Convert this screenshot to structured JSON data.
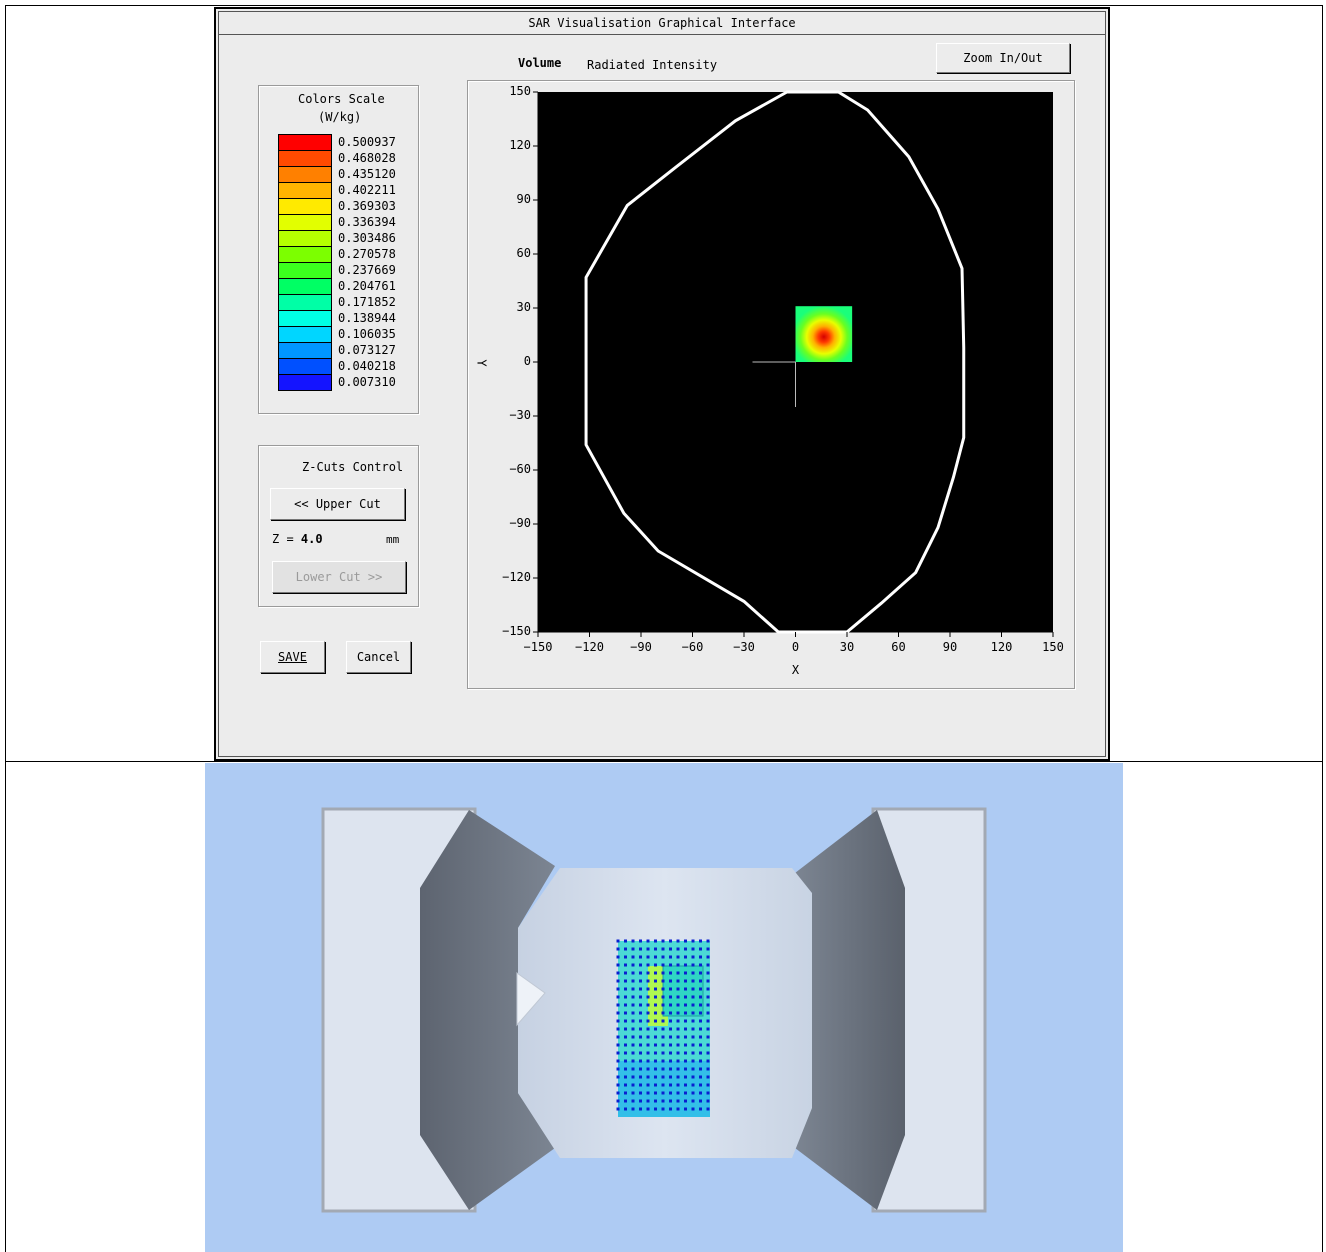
{
  "window": {
    "title": "SAR Visualisation Graphical Interface",
    "mode_label": "Volume",
    "mode_value": "Radiated Intensity",
    "zoom_button": "Zoom In/Out"
  },
  "color_scale": {
    "title_line1": "Colors Scale",
    "title_line2": "(W/kg)",
    "entries": [
      {
        "value": "0.500937",
        "color": "#ff0000"
      },
      {
        "value": "0.468028",
        "color": "#ff4a00"
      },
      {
        "value": "0.435120",
        "color": "#ff8000"
      },
      {
        "value": "0.402211",
        "color": "#ffb400"
      },
      {
        "value": "0.369303",
        "color": "#ffea00"
      },
      {
        "value": "0.336394",
        "color": "#e2ff00"
      },
      {
        "value": "0.303486",
        "color": "#b6ff00"
      },
      {
        "value": "0.270578",
        "color": "#7cff00"
      },
      {
        "value": "0.237669",
        "color": "#3cff1e"
      },
      {
        "value": "0.204761",
        "color": "#00ff64"
      },
      {
        "value": "0.171852",
        "color": "#00ffa6"
      },
      {
        "value": "0.138944",
        "color": "#00ffe4"
      },
      {
        "value": "0.106035",
        "color": "#00d6ff"
      },
      {
        "value": "0.073127",
        "color": "#0096ff"
      },
      {
        "value": "0.040218",
        "color": "#0050ff"
      },
      {
        "value": "0.007310",
        "color": "#1414ff"
      }
    ]
  },
  "zcuts": {
    "title": "Z-Cuts Control",
    "upper_button": "<< Upper Cut",
    "z_label": "Z = ",
    "z_value": "4.0",
    "z_unit": "mm",
    "lower_button": "Lower Cut >>"
  },
  "actions": {
    "save": "SAVE",
    "cancel": "Cancel"
  },
  "chart_data": {
    "type": "heatmap",
    "xlabel": "X",
    "ylabel": "Y",
    "xlim": [
      -150,
      150
    ],
    "ylim": [
      -150,
      150
    ],
    "x_ticks": [
      -150,
      -120,
      -90,
      -60,
      -30,
      0,
      30,
      60,
      90,
      120,
      150
    ],
    "y_ticks": [
      150,
      120,
      90,
      60,
      30,
      0,
      -30,
      -60,
      -90,
      -120,
      -150
    ],
    "phantom_outline": [
      [
        -5,
        150
      ],
      [
        -35,
        134
      ],
      [
        -70,
        108
      ],
      [
        -98,
        87
      ],
      [
        -122,
        47
      ],
      [
        -122,
        -46
      ],
      [
        -100,
        -84
      ],
      [
        -80,
        -105
      ],
      [
        -30,
        -133
      ],
      [
        -10,
        -150
      ],
      [
        30,
        -150
      ],
      [
        50,
        -134
      ],
      [
        70,
        -117
      ],
      [
        83,
        -92
      ],
      [
        92,
        -64
      ],
      [
        98,
        -42
      ],
      [
        98,
        8
      ],
      [
        97,
        52
      ],
      [
        83,
        85
      ],
      [
        66,
        114
      ],
      [
        42,
        140
      ],
      [
        25,
        150
      ]
    ],
    "sar_region": {
      "x": [
        0,
        33
      ],
      "y": [
        0,
        31
      ],
      "peak": [
        17,
        15
      ],
      "peak_value": 0.500937
    },
    "crosshair_center": [
      0,
      0
    ]
  }
}
